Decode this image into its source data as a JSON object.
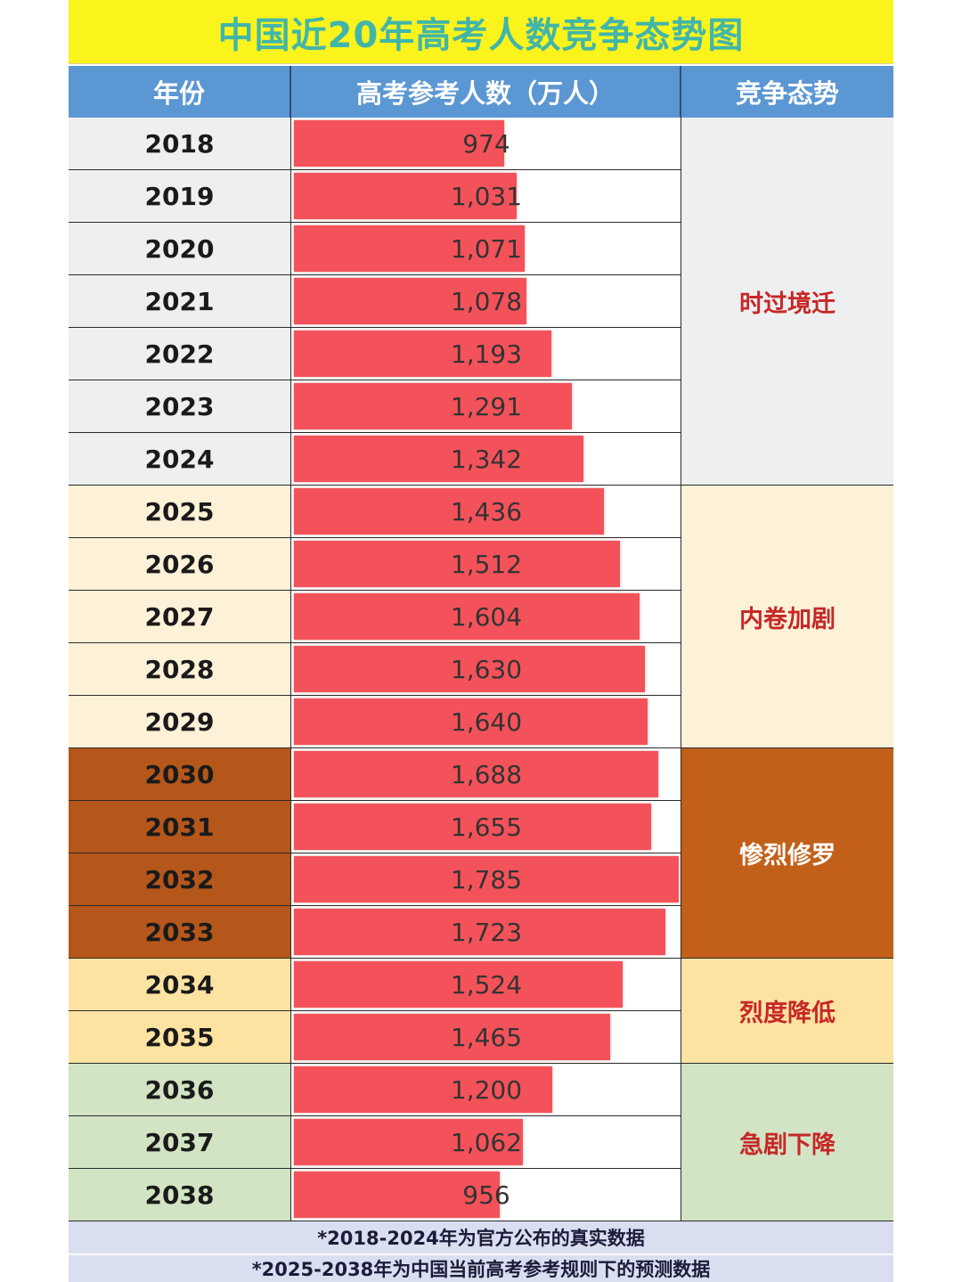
{
  "title": "中国近20年高考人数竞争态势图",
  "headers": {
    "year": "年份",
    "count": "高考参考人数（万人）",
    "trend": "竞争态势"
  },
  "chart_data": {
    "type": "bar",
    "orientation": "horizontal",
    "title": "中国近20年高考人数竞争态势图",
    "categories": [
      "2018",
      "2019",
      "2020",
      "2021",
      "2022",
      "2023",
      "2024",
      "2025",
      "2026",
      "2027",
      "2028",
      "2029",
      "2030",
      "2031",
      "2032",
      "2033",
      "2034",
      "2035",
      "2036",
      "2037",
      "2038"
    ],
    "value_labels": [
      "974",
      "1,031",
      "1,071",
      "1,078",
      "1,193",
      "1,291",
      "1,342",
      "1,436",
      "1,512",
      "1,604",
      "1,630",
      "1,640",
      "1,688",
      "1,655",
      "1,785",
      "1,723",
      "1,524",
      "1,465",
      "1,200",
      "1,062",
      "956"
    ],
    "values": [
      974,
      1031,
      1071,
      1078,
      1193,
      1291,
      1342,
      1436,
      1512,
      1604,
      1630,
      1640,
      1688,
      1655,
      1785,
      1723,
      1524,
      1465,
      1200,
      1062,
      956
    ],
    "xlim": [
      0,
      1785
    ],
    "bar_color": "#f4525a"
  },
  "groups": [
    {
      "label": "时过境迁",
      "start": 0,
      "count": 7,
      "bg": "#eeeff0",
      "text_color": "#c62828"
    },
    {
      "label": "内卷加剧",
      "start": 7,
      "count": 5,
      "bg": "#fdf1d8",
      "text_color": "#c62828"
    },
    {
      "label": "惨烈修罗",
      "start": 12,
      "count": 4,
      "bg": "#c2601a",
      "text_color": "#ffffff"
    },
    {
      "label": "烈度降低",
      "start": 16,
      "count": 2,
      "bg": "#fde3a1",
      "text_color": "#c62828"
    },
    {
      "label": "急剧下降",
      "start": 18,
      "count": 3,
      "bg": "#d2e4c3",
      "text_color": "#c62828"
    }
  ],
  "year_colors": [
    "#eeeff0",
    "#eeeff0",
    "#eeeff0",
    "#eeeff0",
    "#eeeff0",
    "#eeeff0",
    "#eeeff0",
    "#fdf1d8",
    "#fdf1d8",
    "#fdf1d8",
    "#fdf1d8",
    "#fdf1d8",
    "#b5571a",
    "#b5571a",
    "#b5571a",
    "#b5571a",
    "#fde3a1",
    "#fde3a1",
    "#d2e4c3",
    "#d2e4c3",
    "#d2e4c3"
  ],
  "notes": [
    "*2018-2024年为官方公布的真实数据",
    "*2025-2038年为中国当前高考参考规则下的预测数据"
  ]
}
